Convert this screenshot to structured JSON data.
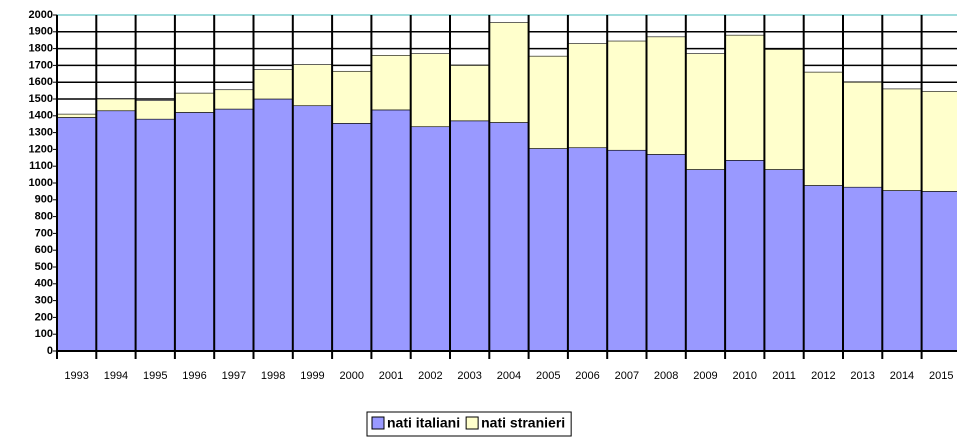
{
  "chart_data": {
    "type": "stacked-bar",
    "categories": [
      "1993",
      "1994",
      "1995",
      "1996",
      "1997",
      "1998",
      "1999",
      "2000",
      "2001",
      "2002",
      "2003",
      "2004",
      "2005",
      "2006",
      "2007",
      "2008",
      "2009",
      "2010",
      "2011",
      "2012",
      "2013",
      "2014",
      "2015"
    ],
    "series": [
      {
        "name": "nati italiani",
        "color": "#9999ff",
        "values": [
          1390,
          1430,
          1380,
          1420,
          1440,
          1500,
          1460,
          1355,
          1435,
          1335,
          1370,
          1360,
          1205,
          1210,
          1195,
          1170,
          1080,
          1135,
          1080,
          985,
          975,
          955,
          950
        ]
      },
      {
        "name": "nati stranieri",
        "color": "#ffffcc",
        "values": [
          20,
          70,
          110,
          115,
          115,
          175,
          245,
          310,
          325,
          435,
          330,
          595,
          550,
          620,
          650,
          700,
          690,
          745,
          715,
          675,
          625,
          605,
          595
        ]
      }
    ],
    "ylim": [
      0,
      2000
    ],
    "yticks": [
      0,
      100,
      200,
      300,
      400,
      500,
      600,
      700,
      800,
      900,
      1000,
      1100,
      1200,
      1300,
      1400,
      1500,
      1600,
      1700,
      1800,
      1900,
      2000
    ],
    "grid": true,
    "legend": "bottom"
  }
}
